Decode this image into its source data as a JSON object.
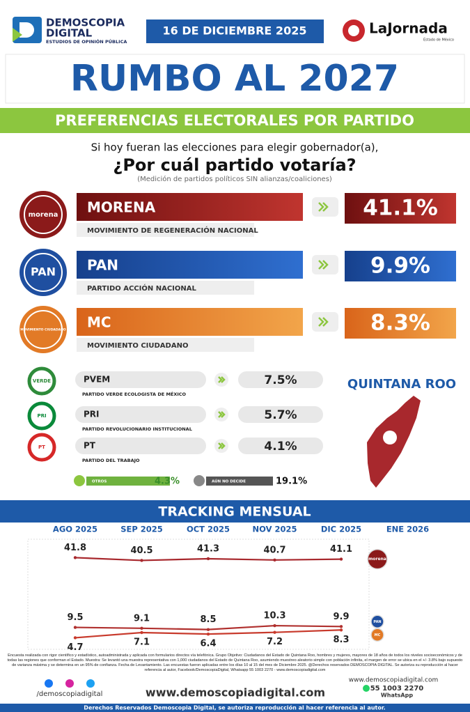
{
  "header": {
    "brand": "DEMOSCOPIA",
    "brand2": "DIGITAL",
    "tagline": "ESTUDIOS DE OPINIÓN PÚBLICA",
    "date": "16 DE DICIEMBRE 2025",
    "partner": "LaJornada",
    "partner_sub": "Estado de México"
  },
  "title": "RUMBO AL 2027",
  "subtitle": "PREFERENCIAS ELECTORALES POR PARTIDO",
  "question": {
    "intro": "Si hoy fueran las elecciones para elegir gobernador(a),",
    "main": "¿Por cuál partido votaría?",
    "note": "(Medición de partidos políticos SIN alianzas/coaliciones)"
  },
  "parties": [
    {
      "logo": "morena",
      "name": "MORENA",
      "full_name": "MOVIMIENTO DE REGENERACIÓN NACIONAL",
      "value": "41.1%"
    },
    {
      "logo": "PAN",
      "name": "PAN",
      "full_name": "PARTIDO ACCIÓN NACIONAL",
      "value": "9.9%"
    },
    {
      "logo": "MOVIMIENTO CIUDADANO",
      "name": "MC",
      "full_name": "MOVIMIENTO CIUDADANO",
      "value": "8.3%"
    },
    {
      "logo": "VERDE",
      "name": "PVEM",
      "full_name": "PARTIDO VERDE ECOLOGISTA DE MÉXICO",
      "value": "7.5%"
    },
    {
      "logo": "PRI",
      "name": "PRI",
      "full_name": "PARTIDO REVOLUCIONARIO INSTITUCIONAL",
      "value": "5.7%"
    },
    {
      "logo": "PT",
      "name": "PT",
      "full_name": "PARTIDO DEL TRABAJO",
      "value": "4.1%"
    }
  ],
  "others": {
    "label": "OTROS",
    "value": "4.3%"
  },
  "undecided": {
    "label": "AÚN NO DECIDE",
    "value": "19.1%"
  },
  "region": "QUINTANA ROO",
  "chart_data": {
    "type": "line",
    "title": "TRACKING MENSUAL",
    "categories": [
      "AGO 2025",
      "SEP 2025",
      "OCT 2025",
      "NOV 2025",
      "DIC 2025",
      "ENE 2026"
    ],
    "series": [
      {
        "name": "morena",
        "color": "#a8282d",
        "values": [
          41.8,
          40.5,
          41.3,
          40.7,
          41.1,
          null
        ]
      },
      {
        "name": "PAN",
        "color": "#b0302e",
        "values": [
          9.5,
          9.1,
          8.5,
          10.3,
          9.9,
          null
        ]
      },
      {
        "name": "MC",
        "color": "#c83a2c",
        "values": [
          4.7,
          7.1,
          6.4,
          7.2,
          8.3,
          null
        ]
      }
    ],
    "ylim": [
      0,
      50
    ]
  },
  "footer": {
    "methodology": "Encuesta realizada con rigor científico y estadístico, autoadministrada y aplicada con formularios directos vía telefónica. Grupo Objetivo: Ciudadanos del Estado de Quintana Roo, hombres y mujeres, mayores de 18 años de todos los niveles socioeconómicos y de todas las regiones que conforman el Estado. Muestra: Se levantó una muestra representativa con 1,000 ciudadanos del Estado de Quintana Roo, asumiendo muestreo aleatorio simple con población infinita, el margen de error se ubica en el +/- 3.8% bajo supuesto de varianza máxima y se determina en un 95% de confianza. Fecha de Levantamiento. Las encuestas fueron aplicadas entre los días 10 al 15 del mes de Diciembre 2025. @Derechos reservados DEMOSCOPIA DIGITAL. Se autoriza su reproducción al hacer referencia al autor, Facebook/DemoscopiaDigital, Whatsapp 55 1003 2270 - www.demoscopiadigital.com",
    "social": "/demoscopiadigital",
    "website": "www.demoscopiadigital.com",
    "phone": "55 1003 2270",
    "whatsapp": "WhatsApp",
    "rights": "Derechos Reservados Demoscopia Digital, se autoriza reproducción al hacer referencia al autor."
  }
}
